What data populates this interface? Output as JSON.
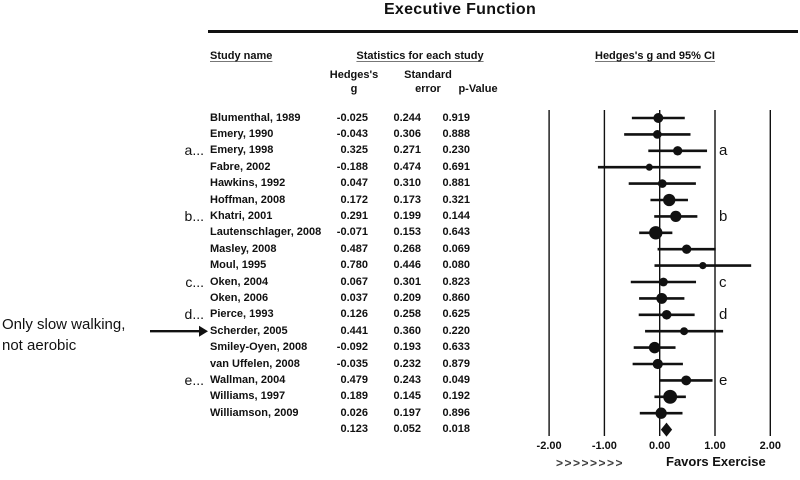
{
  "title": "Executive Function",
  "header": {
    "study_name": "Study name",
    "stats_group": "Statistics for each study",
    "col_g_line1": "Hedges's",
    "col_g_line2": "g",
    "col_se_line1": "Standard",
    "col_se_line2": "error",
    "col_p": "p-Value",
    "plot_group": "Hedges's g and 95% CI"
  },
  "annotation": {
    "line1": "Only slow walking,",
    "line2": "not aerobic"
  },
  "footer": {
    "arrows_glyph": ">>>>>>>>",
    "favors_label": "Favors Exercise"
  },
  "colors": {
    "ink": "#111111",
    "underline": "#777777",
    "arrow_glyph": "#3d3d3d",
    "background": "#ffffff"
  },
  "chart_data": {
    "type": "forest",
    "title": "Executive Function",
    "effect_measure": "Hedges's g",
    "ci_level": "95% CI",
    "x_ticks": [
      -2.0,
      -1.0,
      0.0,
      1.0,
      2.0
    ],
    "x_tick_labels": [
      "-2.00",
      "-1.00",
      "0.00",
      "1.00",
      "2.00"
    ],
    "x_range": [
      -2,
      2
    ],
    "favors_right_label": "Favors Exercise",
    "studies": [
      {
        "name": "Blumenthal, 1989",
        "g": -0.025,
        "se": 0.244,
        "p": 0.919
      },
      {
        "name": "Emery, 1990",
        "g": -0.043,
        "se": 0.306,
        "p": 0.888
      },
      {
        "name": "Emery, 1998",
        "g": 0.325,
        "se": 0.271,
        "p": 0.23,
        "left_note": "a...",
        "right_note": "a"
      },
      {
        "name": "Fabre, 2002",
        "g": -0.188,
        "se": 0.474,
        "p": 0.691
      },
      {
        "name": "Hawkins, 1992",
        "g": 0.047,
        "se": 0.31,
        "p": 0.881
      },
      {
        "name": "Hoffman, 2008",
        "g": 0.172,
        "se": 0.173,
        "p": 0.321
      },
      {
        "name": "Khatri, 2001",
        "g": 0.291,
        "se": 0.199,
        "p": 0.144,
        "left_note": "b...",
        "right_note": "b"
      },
      {
        "name": "Lautenschlager, 2008",
        "g": -0.071,
        "se": 0.153,
        "p": 0.643
      },
      {
        "name": "Masley, 2008",
        "g": 0.487,
        "se": 0.268,
        "p": 0.069
      },
      {
        "name": "Moul, 1995",
        "g": 0.78,
        "se": 0.446,
        "p": 0.08
      },
      {
        "name": "Oken, 2004",
        "g": 0.067,
        "se": 0.301,
        "p": 0.823,
        "left_note": "c...",
        "right_note": "c"
      },
      {
        "name": "Oken, 2006",
        "g": 0.037,
        "se": 0.209,
        "p": 0.86
      },
      {
        "name": "Pierce, 1993",
        "g": 0.126,
        "se": 0.258,
        "p": 0.625,
        "left_note": "d...",
        "right_note": "d"
      },
      {
        "name": "Scherder, 2005",
        "g": 0.441,
        "se": 0.36,
        "p": 0.22,
        "annotation_arrow": true
      },
      {
        "name": "Smiley-Oyen, 2008",
        "g": -0.092,
        "se": 0.193,
        "p": 0.633
      },
      {
        "name": "van Uffelen, 2008",
        "g": -0.035,
        "se": 0.232,
        "p": 0.879
      },
      {
        "name": "Wallman, 2004",
        "g": 0.479,
        "se": 0.243,
        "p": 0.049,
        "left_note": "e...",
        "right_note": "e"
      },
      {
        "name": "Williams, 1997",
        "g": 0.189,
        "se": 0.145,
        "p": 0.192
      },
      {
        "name": "Williamson, 2009",
        "g": 0.026,
        "se": 0.197,
        "p": 0.896
      }
    ],
    "overall": {
      "g": 0.123,
      "se": 0.052,
      "p": 0.018
    }
  }
}
